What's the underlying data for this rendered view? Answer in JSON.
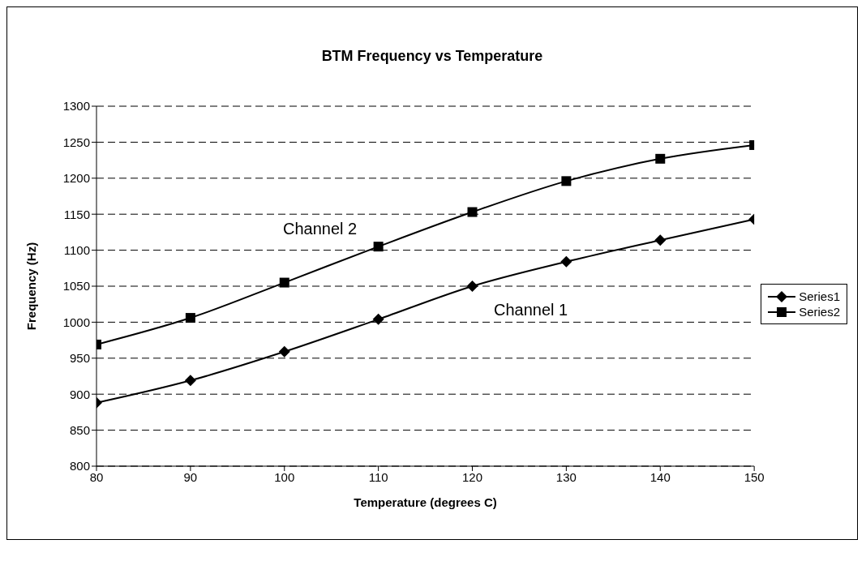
{
  "chart_data": {
    "type": "line",
    "title": "BTM Frequency vs Temperature",
    "xlabel": "Temperature (degrees C)",
    "ylabel": "Frequency (Hz)",
    "x": [
      80,
      90,
      100,
      110,
      120,
      130,
      140,
      150
    ],
    "series": [
      {
        "name": "Series1",
        "color": "#000000",
        "marker": "diamond",
        "values": [
          888,
          919,
          959,
          1004,
          1050,
          1084,
          1114,
          1143
        ]
      },
      {
        "name": "Series2",
        "color": "#000000",
        "marker": "square",
        "values": [
          969,
          1006,
          1055,
          1105,
          1153,
          1196,
          1227,
          1246
        ]
      }
    ],
    "xlim": [
      80,
      150
    ],
    "xticks": [
      80,
      90,
      100,
      110,
      120,
      130,
      140,
      150
    ],
    "ylim": [
      800,
      1300
    ],
    "yticks": [
      800,
      850,
      900,
      950,
      1000,
      1050,
      1100,
      1150,
      1200,
      1250,
      1300
    ],
    "grid": "y",
    "line_style": "solid",
    "legend": "right",
    "annotations": [
      "Channel 2",
      "Channel 1"
    ]
  }
}
